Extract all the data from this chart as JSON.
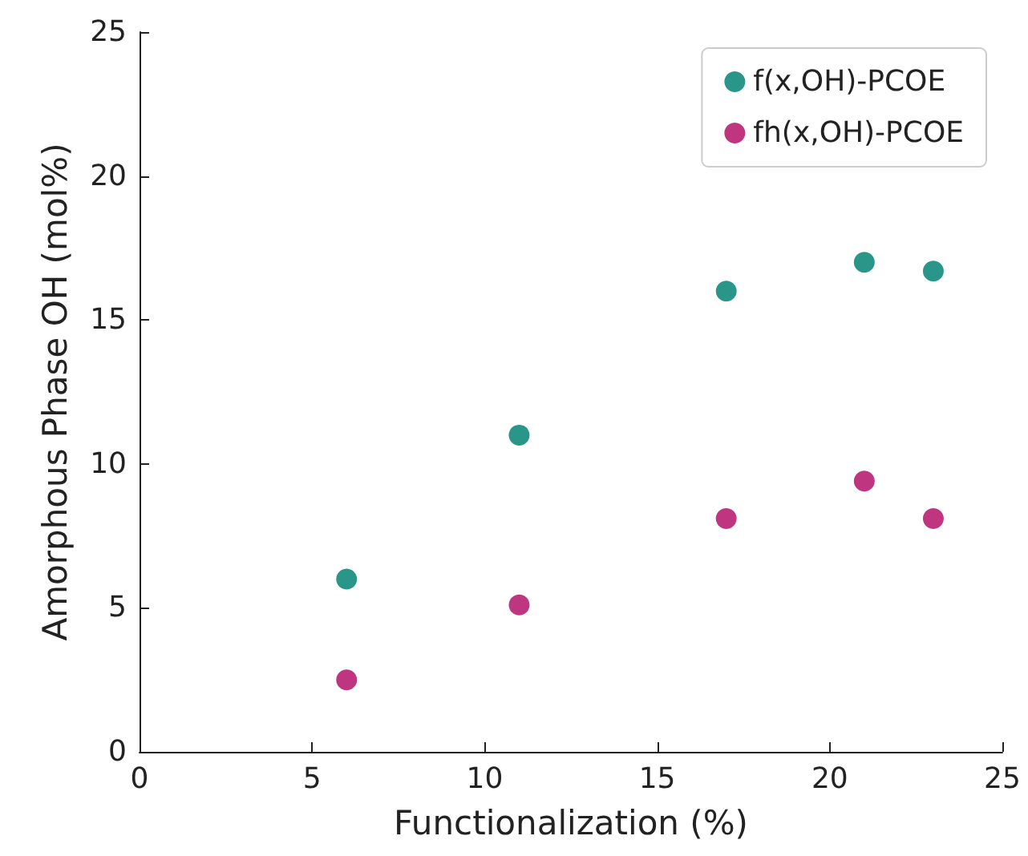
{
  "chart_data": {
    "type": "scatter",
    "xlabel": "Functionalization (%)",
    "ylabel": "Amorphous Phase OH (mol%)",
    "xlim": [
      0,
      25
    ],
    "xticks": [
      0,
      5,
      10,
      15,
      20,
      25
    ],
    "ylim": [
      0,
      25
    ],
    "yticks": [
      0,
      5,
      10,
      15,
      20,
      25
    ],
    "x": [
      6,
      11,
      17,
      21,
      23
    ],
    "series": [
      {
        "name": "f(x,OH)-PCOE",
        "color": "#2a968a",
        "values": [
          6,
          11,
          16,
          17,
          16.7
        ]
      },
      {
        "name": "fh(x,OH)-PCOE",
        "color": "#bf3580",
        "values": [
          2.5,
          5.1,
          8.1,
          9.4,
          8.1
        ]
      }
    ],
    "legend": "top right",
    "marker": "circle",
    "grid": false
  }
}
